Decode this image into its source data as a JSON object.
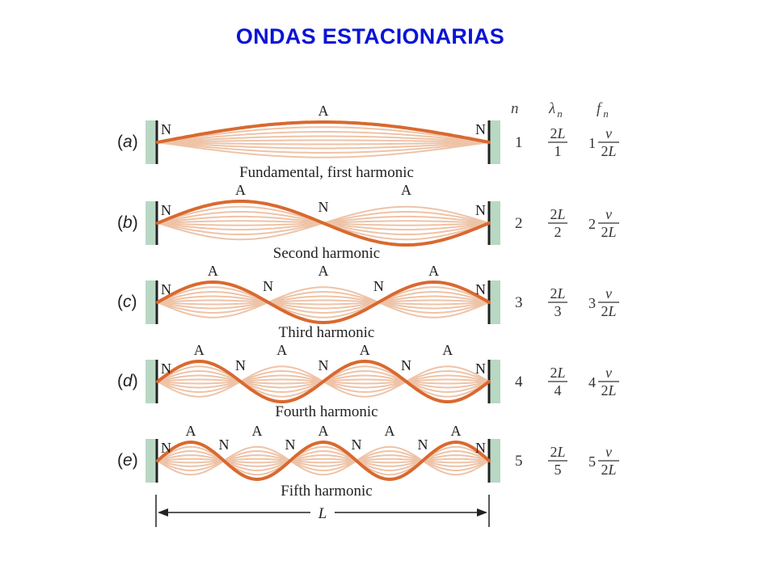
{
  "title": "ONDAS ESTACIONARIAS",
  "columns": {
    "n": "n",
    "lambda": "λ",
    "lambda_sub": "n",
    "f": "f",
    "f_sub": "n"
  },
  "node_label": "N",
  "antinode_label": "A",
  "length_label": "L",
  "colors": {
    "title": "#0a14d6",
    "wave": "#d9692f",
    "ghost": "#eec3a7",
    "wall": "#b9d8c4"
  },
  "panels": [
    {
      "part": "a",
      "n": 1,
      "caption": "Fundamental, first harmonic",
      "lambda_num": "2L",
      "lambda_den": "1",
      "f_coef": "1",
      "f_num": "v",
      "f_den": "2L"
    },
    {
      "part": "b",
      "n": 2,
      "caption": "Second harmonic",
      "lambda_num": "2L",
      "lambda_den": "2",
      "f_coef": "2",
      "f_num": "v",
      "f_den": "2L"
    },
    {
      "part": "c",
      "n": 3,
      "caption": "Third harmonic",
      "lambda_num": "2L",
      "lambda_den": "3",
      "f_coef": "3",
      "f_num": "v",
      "f_den": "2L"
    },
    {
      "part": "d",
      "n": 4,
      "caption": "Fourth harmonic",
      "lambda_num": "2L",
      "lambda_den": "4",
      "f_coef": "4",
      "f_num": "v",
      "f_den": "2L"
    },
    {
      "part": "e",
      "n": 5,
      "caption": "Fifth harmonic",
      "lambda_num": "2L",
      "lambda_den": "5",
      "f_coef": "5",
      "f_num": "v",
      "f_den": "2L"
    }
  ]
}
